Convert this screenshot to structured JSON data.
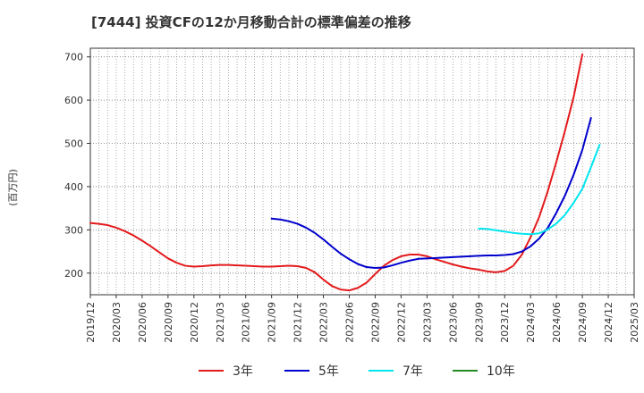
{
  "chart_data": {
    "type": "line",
    "title": "[7444]  投資CFの12か月移動合計の標準偏差の推移",
    "ylabel": "(百万円)",
    "xlabel": "",
    "ylim": [
      150,
      720
    ],
    "yticks": [
      200,
      300,
      400,
      500,
      600,
      700
    ],
    "ytick_labels": [
      "200",
      "300",
      "400",
      "500",
      "600",
      "700"
    ],
    "x_categories": [
      "2019/12",
      "2020/03",
      "2020/06",
      "2020/09",
      "2020/12",
      "2021/03",
      "2021/06",
      "2021/09",
      "2021/12",
      "2022/03",
      "2022/06",
      "2022/09",
      "2022/12",
      "2023/03",
      "2023/06",
      "2023/09",
      "2023/12",
      "2024/03",
      "2024/06",
      "2024/09",
      "2024/12",
      "2025/03"
    ],
    "grid": true,
    "legend_position": "bottom",
    "series": [
      {
        "name": "3年",
        "color": "#e31a1c",
        "start_index": 0,
        "values": [
          316,
          314,
          311,
          305,
          297,
          287,
          275,
          262,
          248,
          234,
          224,
          217,
          215,
          216,
          218,
          219,
          219,
          218,
          217,
          216,
          215,
          215,
          216,
          217,
          216,
          212,
          202,
          185,
          170,
          162,
          160,
          166,
          178,
          198,
          217,
          230,
          239,
          243,
          243,
          239,
          232,
          226,
          220,
          215,
          211,
          208,
          204,
          202,
          205,
          217,
          243,
          283,
          330,
          390,
          458,
          530,
          608,
          706
        ]
      },
      {
        "name": "5年",
        "color": "#0000cc",
        "start_index": 21,
        "values": [
          326,
          324,
          320,
          314,
          305,
          293,
          278,
          261,
          245,
          232,
          221,
          214,
          212,
          213,
          218,
          224,
          229,
          233,
          234,
          235,
          236,
          237,
          238,
          239,
          240,
          241,
          241,
          242,
          244,
          250,
          262,
          280,
          305,
          340,
          380,
          428,
          485,
          559
        ]
      },
      {
        "name": "7年",
        "color": "#00e5ee",
        "start_index": 45,
        "values": [
          303,
          302,
          299,
          296,
          293,
          291,
          290,
          292,
          301,
          315,
          335,
          363,
          395,
          445,
          497
        ]
      },
      {
        "name": "10年",
        "color": "#228b22",
        "start_index": 0,
        "values": []
      }
    ]
  }
}
